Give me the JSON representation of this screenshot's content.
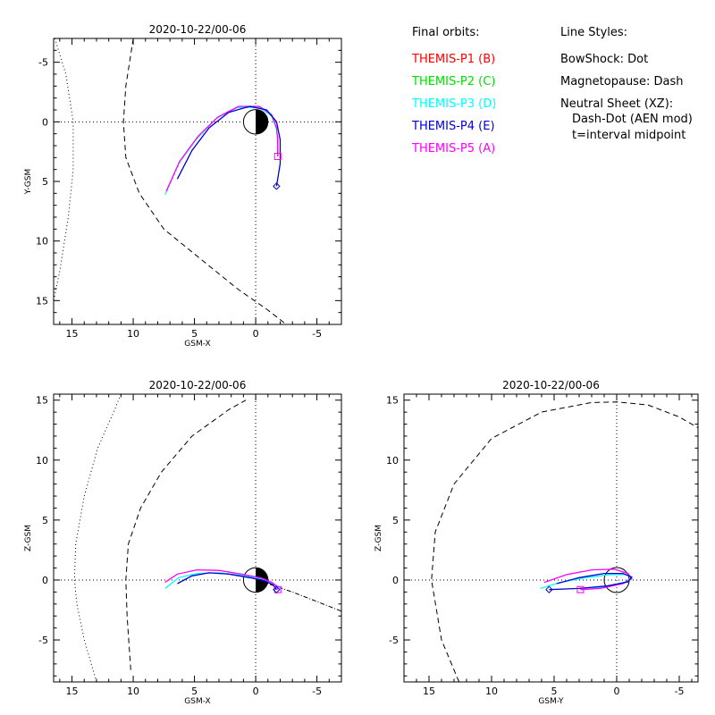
{
  "legend": {
    "orbits_title": "Final orbits:",
    "orbits": [
      {
        "label": "THEMIS-P1 (B)",
        "color": "#ff0000"
      },
      {
        "label": "THEMIS-P2 (C)",
        "color": "#00dd00"
      },
      {
        "label": "THEMIS-P3 (D)",
        "color": "#00ffff"
      },
      {
        "label": "THEMIS-P4 (E)",
        "color": "#0000cc"
      },
      {
        "label": "THEMIS-P5 (A)",
        "color": "#ff00ff"
      }
    ],
    "styles_title": "Line Styles:",
    "styles": [
      "BowShock: Dot",
      "Magnetopause: Dash",
      "Neutral Sheet (XZ):",
      "Dash-Dot (AEN mod)",
      "t=interval midpoint"
    ]
  },
  "chart_data": [
    {
      "type": "line",
      "title": "2020-10-22/00-06",
      "xlabel": "GSM-X",
      "ylabel": "Y-GSM",
      "xlim": [
        16.5,
        -7
      ],
      "ylim": [
        17,
        -7
      ],
      "xticks": [
        15,
        10,
        5,
        0,
        -5
      ],
      "yticks": [
        -5,
        0,
        5,
        10,
        15
      ],
      "grid_lines": "dotted zero lines",
      "earth": true,
      "bow_shock": [
        [
          16.4,
          -7
        ],
        [
          15.5,
          -4
        ],
        [
          14.9,
          0
        ],
        [
          14.9,
          4
        ],
        [
          15.3,
          8
        ],
        [
          16.0,
          12.5
        ],
        [
          16.5,
          15
        ]
      ],
      "magnetopause": [
        [
          10.0,
          -7
        ],
        [
          10.6,
          -3
        ],
        [
          10.8,
          0
        ],
        [
          10.6,
          3
        ],
        [
          9.5,
          6
        ],
        [
          7.5,
          9
        ],
        [
          4.5,
          11.5
        ],
        [
          1.5,
          14
        ],
        [
          -1.0,
          15.8
        ],
        [
          -2.5,
          17
        ]
      ],
      "series": [
        {
          "name": "THEMIS-P3 (D)",
          "color": "#00ffff",
          "points": [
            [
              7.4,
              6.1
            ],
            [
              6.3,
              3.5
            ],
            [
              4.8,
              1.4
            ],
            [
              3.2,
              -0.3
            ],
            [
              1.5,
              -1.2
            ],
            [
              -0.3,
              -1.2
            ],
            [
              -1.3,
              -0.5
            ],
            [
              -1.7,
              0.6
            ],
            [
              -1.8,
              1.4
            ],
            [
              -1.8,
              2.7
            ]
          ]
        },
        {
          "name": "THEMIS-P5 (A)",
          "color": "#ff00ff",
          "points": [
            [
              7.3,
              5.8
            ],
            [
              6.2,
              3.3
            ],
            [
              4.7,
              1.2
            ],
            [
              3.1,
              -0.4
            ],
            [
              1.4,
              -1.3
            ],
            [
              -0.3,
              -1.3
            ],
            [
              -1.3,
              -0.6
            ],
            [
              -1.7,
              0.5
            ],
            [
              -1.8,
              1.6
            ],
            [
              -1.8,
              2.9
            ]
          ]
        },
        {
          "name": "THEMIS-P4 (E)",
          "color": "#0000cc",
          "points": [
            [
              6.4,
              4.8
            ],
            [
              5.2,
              2.4
            ],
            [
              3.8,
              0.5
            ],
            [
              2.2,
              -0.8
            ],
            [
              0.5,
              -1.3
            ],
            [
              -0.9,
              -1.0
            ],
            [
              -1.7,
              0.0
            ],
            [
              -2.0,
              1.5
            ],
            [
              -2.0,
              3.5
            ],
            [
              -1.7,
              5.4
            ]
          ]
        }
      ],
      "markers": [
        {
          "shape": "square",
          "color": "#ff00ff",
          "x": -1.8,
          "y": 2.9
        },
        {
          "shape": "diamond",
          "color": "#0000cc",
          "x": -1.7,
          "y": 5.4
        }
      ]
    },
    {
      "type": "line",
      "title": "2020-10-22/00-06",
      "xlabel": "GSM-X",
      "ylabel": "Z-GSM",
      "xlim": [
        16.5,
        -7
      ],
      "ylim": [
        -8.5,
        15.5
      ],
      "xticks": [
        15,
        10,
        5,
        0,
        -5
      ],
      "yticks": [
        -5,
        0,
        5,
        10,
        15
      ],
      "grid_lines": "dotted zero lines",
      "earth": true,
      "bow_shock": [
        [
          13.0,
          -8.5
        ],
        [
          14.0,
          -5
        ],
        [
          14.6,
          -2
        ],
        [
          14.8,
          0
        ],
        [
          14.7,
          3
        ],
        [
          14.0,
          7
        ],
        [
          12.9,
          11
        ],
        [
          11.6,
          14
        ],
        [
          11.0,
          15.5
        ]
      ],
      "magnetopause": [
        [
          10.2,
          -7.5
        ],
        [
          10.5,
          -3
        ],
        [
          10.6,
          0
        ],
        [
          10.4,
          3
        ],
        [
          9.4,
          6
        ],
        [
          7.7,
          9
        ],
        [
          5.2,
          12
        ],
        [
          2.2,
          14.2
        ],
        [
          0.8,
          15.0
        ]
      ],
      "neutral_sheet": [
        [
          1.0,
          0.0
        ],
        [
          -1.0,
          -0.3
        ],
        [
          -3.0,
          -1.0
        ],
        [
          -5.0,
          -1.8
        ],
        [
          -7.0,
          -2.6
        ]
      ],
      "series": [
        {
          "name": "THEMIS-P3 (D)",
          "color": "#00ffff",
          "points": [
            [
              7.4,
              -0.7
            ],
            [
              6.3,
              0.2
            ],
            [
              4.8,
              0.55
            ],
            [
              3.0,
              0.6
            ],
            [
              1.2,
              0.4
            ],
            [
              -0.5,
              0.1
            ],
            [
              -1.3,
              -0.2
            ],
            [
              -1.7,
              -0.45
            ],
            [
              -2.0,
              -0.7
            ]
          ]
        },
        {
          "name": "THEMIS-P5 (A)",
          "color": "#ff00ff",
          "points": [
            [
              7.4,
              -0.2
            ],
            [
              6.4,
              0.5
            ],
            [
              4.8,
              0.85
            ],
            [
              3.0,
              0.8
            ],
            [
              1.2,
              0.5
            ],
            [
              -0.5,
              0.15
            ],
            [
              -1.3,
              -0.2
            ],
            [
              -1.7,
              -0.5
            ],
            [
              -1.8,
              -0.8
            ]
          ]
        },
        {
          "name": "THEMIS-P4 (E)",
          "color": "#0000cc",
          "points": [
            [
              6.4,
              -0.3
            ],
            [
              5.2,
              0.35
            ],
            [
              3.8,
              0.6
            ],
            [
              2.2,
              0.5
            ],
            [
              0.5,
              0.2
            ],
            [
              -0.8,
              -0.1
            ],
            [
              -1.4,
              -0.4
            ],
            [
              -1.7,
              -0.8
            ]
          ]
        }
      ],
      "markers": [
        {
          "shape": "square",
          "color": "#ff00ff",
          "x": -1.8,
          "y": -0.8
        },
        {
          "shape": "diamond",
          "color": "#0000cc",
          "x": -1.7,
          "y": -0.8
        }
      ]
    },
    {
      "type": "line",
      "title": "2020-10-22/00-06",
      "xlabel": "GSM-Y",
      "ylabel": "Z-GSM",
      "xlim": [
        17,
        -6.5
      ],
      "ylim": [
        -8.5,
        15.5
      ],
      "xticks": [
        15,
        10,
        5,
        0,
        -5
      ],
      "yticks": [
        -5,
        0,
        5,
        10,
        15
      ],
      "grid_lines": "dotted zero lines",
      "earth": false,
      "magnetopause": [
        [
          12.6,
          -8.5
        ],
        [
          14.0,
          -5
        ],
        [
          14.8,
          0
        ],
        [
          14.5,
          4
        ],
        [
          13.0,
          8
        ],
        [
          10.0,
          11.8
        ],
        [
          6.0,
          14.0
        ],
        [
          2.0,
          14.8
        ],
        [
          0.0,
          14.85
        ],
        [
          -2.5,
          14.6
        ],
        [
          -5.0,
          13.6
        ],
        [
          -6.5,
          12.7
        ]
      ],
      "series": [
        {
          "name": "THEMIS-P3 (D)",
          "color": "#00ffff",
          "points": [
            [
              6.1,
              -0.7
            ],
            [
              4.5,
              -0.2
            ],
            [
              2.5,
              0.2
            ],
            [
              0.5,
              0.45
            ],
            [
              -0.8,
              0.45
            ],
            [
              -1.2,
              0.2
            ],
            [
              -0.6,
              -0.2
            ],
            [
              1.0,
              -0.6
            ],
            [
              2.7,
              -0.8
            ]
          ]
        },
        {
          "name": "THEMIS-P5 (A)",
          "color": "#ff00ff",
          "points": [
            [
              5.8,
              -0.2
            ],
            [
              4.0,
              0.45
            ],
            [
              2.0,
              0.85
            ],
            [
              0.2,
              0.9
            ],
            [
              -0.9,
              0.55
            ],
            [
              -1.2,
              0.1
            ],
            [
              -0.5,
              -0.3
            ],
            [
              1.3,
              -0.7
            ],
            [
              2.9,
              -0.8
            ]
          ]
        },
        {
          "name": "THEMIS-P4 (E)",
          "color": "#0000cc",
          "points": [
            [
              4.8,
              -0.3
            ],
            [
              3.0,
              0.2
            ],
            [
              1.0,
              0.55
            ],
            [
              -0.5,
              0.55
            ],
            [
              -1.2,
              0.25
            ],
            [
              -0.9,
              -0.15
            ],
            [
              0.8,
              -0.5
            ],
            [
              3.0,
              -0.7
            ],
            [
              5.4,
              -0.8
            ]
          ]
        }
      ],
      "markers": [
        {
          "shape": "square",
          "color": "#ff00ff",
          "x": 2.9,
          "y": -0.8
        },
        {
          "shape": "diamond",
          "color": "#0000cc",
          "x": 5.4,
          "y": -0.8
        }
      ]
    }
  ]
}
